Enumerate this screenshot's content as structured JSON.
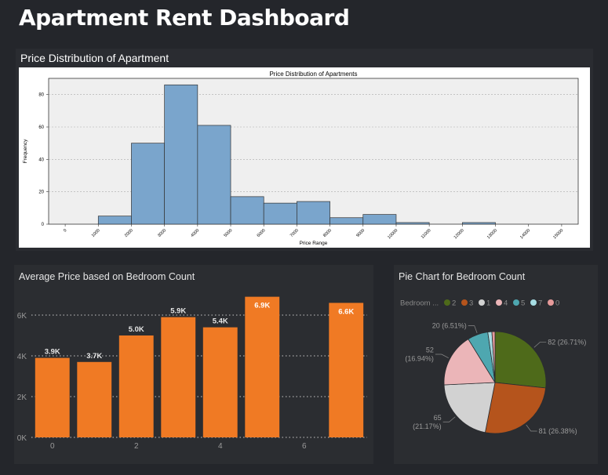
{
  "dashboard": {
    "title": "Apartment Rent Dashboard"
  },
  "histogram_panel": {
    "title": "Price Distribution of Apartment"
  },
  "bar_panel": {
    "title": "Average Price based on Bedroom Count"
  },
  "pie_panel": {
    "title": "Pie Chart for Bedroom Count",
    "legend_title": "Bedroom ..."
  },
  "chart_data": [
    {
      "type": "bar",
      "title": "Price Distribution of Apartments",
      "xlabel": "Price Range",
      "ylabel": "Frequency",
      "xlim": [
        -500,
        15500
      ],
      "ylim": [
        0,
        90
      ],
      "xticks": [
        0,
        1000,
        2000,
        3000,
        4000,
        5000,
        6000,
        7000,
        8000,
        9000,
        10000,
        11000,
        12000,
        13000,
        14000,
        15000
      ],
      "yticks": [
        0,
        20,
        40,
        60,
        80
      ],
      "grid": true,
      "bins": [
        {
          "x0": 0,
          "x1": 1000,
          "count": 0
        },
        {
          "x0": 1000,
          "x1": 2000,
          "count": 5
        },
        {
          "x0": 2000,
          "x1": 3000,
          "count": 50
        },
        {
          "x0": 3000,
          "x1": 4000,
          "count": 86
        },
        {
          "x0": 4000,
          "x1": 5000,
          "count": 61
        },
        {
          "x0": 5000,
          "x1": 6000,
          "count": 17
        },
        {
          "x0": 6000,
          "x1": 7000,
          "count": 13
        },
        {
          "x0": 7000,
          "x1": 8000,
          "count": 14
        },
        {
          "x0": 8000,
          "x1": 9000,
          "count": 4
        },
        {
          "x0": 9000,
          "x1": 10000,
          "count": 6
        },
        {
          "x0": 10000,
          "x1": 11000,
          "count": 1
        },
        {
          "x0": 11000,
          "x1": 12000,
          "count": 0
        },
        {
          "x0": 12000,
          "x1": 13000,
          "count": 1
        },
        {
          "x0": 13000,
          "x1": 14000,
          "count": 0
        },
        {
          "x0": 14000,
          "x1": 15000,
          "count": 0
        }
      ],
      "colors": {
        "bar": "#7aa5cc",
        "edge": "#333333",
        "plot_bg": "#efefef"
      }
    },
    {
      "type": "bar",
      "title": "Average Price based on Bedroom Count",
      "x": [
        0,
        1,
        2,
        3,
        4,
        5,
        7
      ],
      "values": [
        3900,
        3700,
        5000,
        5900,
        5400,
        6900,
        6600
      ],
      "labels": [
        "3.9K",
        "3.7K",
        "5.0K",
        "5.9K",
        "5.4K",
        "6.9K",
        "6.6K"
      ],
      "xticks": [
        0,
        2,
        4,
        6
      ],
      "xlim": [
        -0.5,
        7.5
      ],
      "yticks": [
        0,
        2000,
        4000,
        6000
      ],
      "ytick_labels": [
        "0K",
        "2K",
        "4K",
        "6K"
      ],
      "ylim": [
        0,
        7000
      ],
      "grid": true,
      "colors": {
        "bar": "#f07a24"
      }
    },
    {
      "type": "pie",
      "title": "Pie Chart for Bedroom Count",
      "legend": [
        "2",
        "3",
        "1",
        "4",
        "5",
        "7",
        "0"
      ],
      "slices": [
        {
          "label": "2",
          "value": 82,
          "text": "82 (26.71%)",
          "color": "#4e6a1a"
        },
        {
          "label": "3",
          "value": 81,
          "text": "81 (26.38%)",
          "color": "#b5541c"
        },
        {
          "label": "1",
          "value": 65,
          "text": "65\n(21.17%)",
          "color": "#d2d2d2"
        },
        {
          "label": "4",
          "value": 52,
          "text": "52\n(16.94%)",
          "color": "#ebb5b8"
        },
        {
          "label": "5",
          "value": 20,
          "text": "20 (6.51%)",
          "color": "#4ea7b0"
        },
        {
          "label": "7",
          "value": 4,
          "text": "",
          "color": "#a6dde3"
        },
        {
          "label": "0",
          "value": 3,
          "text": "",
          "color": "#e69a9a"
        }
      ]
    }
  ]
}
